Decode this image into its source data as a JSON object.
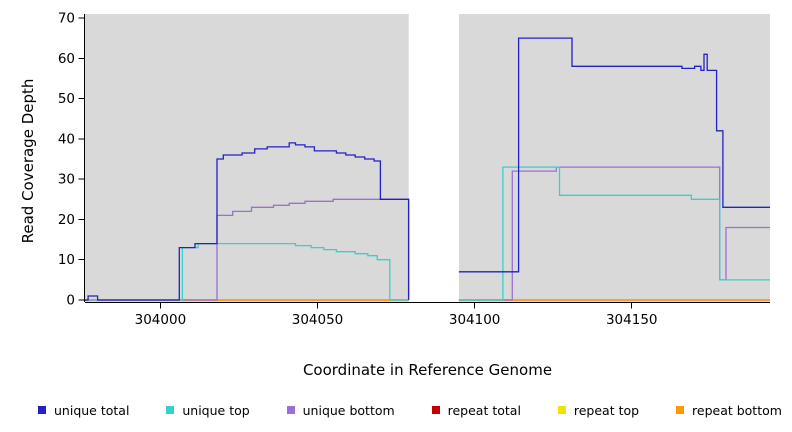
{
  "chart_data": {
    "type": "line",
    "title": "",
    "xlabel": "Coordinate in Reference Genome",
    "ylabel": "Read Coverage Depth",
    "xlim": [
      303976,
      304194
    ],
    "ylim": [
      0,
      70
    ],
    "x_ticks": [
      304000,
      304050,
      304100,
      304150
    ],
    "y_ticks": [
      0,
      10,
      20,
      30,
      40,
      50,
      60,
      70
    ],
    "plot_background": "#d9d9d9",
    "gap_regions": [
      [
        304079,
        304095
      ]
    ],
    "legend": [
      {
        "label": "unique total",
        "color": "#2222c2"
      },
      {
        "label": "unique top",
        "color": "#38cfcf"
      },
      {
        "label": "unique bottom",
        "color": "#9a70d8"
      },
      {
        "label": "repeat total",
        "color": "#c40000"
      },
      {
        "label": "repeat top",
        "color": "#f0e400"
      },
      {
        "label": "repeat bottom",
        "color": "#ff9a00"
      }
    ],
    "series": [
      {
        "name": "repeat total",
        "color": "#c40000",
        "segments": [
          [
            [
              303976,
              0
            ],
            [
              304079,
              0
            ]
          ],
          [
            [
              304095,
              0
            ],
            [
              304194,
              0
            ]
          ]
        ]
      },
      {
        "name": "repeat top",
        "color": "#f0e400",
        "segments": [
          [
            [
              303976,
              0
            ],
            [
              304079,
              0
            ]
          ],
          [
            [
              304095,
              0
            ],
            [
              304194,
              0
            ]
          ]
        ]
      },
      {
        "name": "repeat bottom",
        "color": "#ff9a00",
        "segments": [
          [
            [
              303976,
              0
            ],
            [
              304079,
              0
            ]
          ],
          [
            [
              304095,
              0
            ],
            [
              304194,
              0
            ]
          ]
        ]
      },
      {
        "name": "unique bottom",
        "color": "#9a70d8",
        "segments": [
          [
            [
              303976,
              0
            ],
            [
              304018,
              21
            ],
            [
              304023,
              22
            ],
            [
              304029,
              23
            ],
            [
              304036,
              23.5
            ],
            [
              304041,
              24
            ],
            [
              304046,
              24.5
            ],
            [
              304055,
              25
            ],
            [
              304070,
              25
            ],
            [
              304079,
              0
            ]
          ],
          [
            [
              304095,
              0
            ],
            [
              304112,
              32
            ],
            [
              304126,
              33
            ],
            [
              304177,
              33
            ],
            [
              304178,
              5
            ],
            [
              304180,
              18
            ],
            [
              304194,
              18
            ]
          ]
        ]
      },
      {
        "name": "unique top",
        "color": "#38cfcf",
        "segments": [
          [
            [
              303976,
              0
            ],
            [
              304007,
              13
            ],
            [
              304012,
              14
            ],
            [
              304043,
              13.5
            ],
            [
              304048,
              13
            ],
            [
              304052,
              12.5
            ],
            [
              304056,
              12
            ],
            [
              304062,
              11.5
            ],
            [
              304066,
              11
            ],
            [
              304069,
              10
            ],
            [
              304073,
              0
            ],
            [
              304079,
              0
            ]
          ],
          [
            [
              304095,
              0
            ],
            [
              304109,
              33
            ],
            [
              304127,
              26
            ],
            [
              304169,
              25
            ],
            [
              304178,
              5
            ],
            [
              304194,
              5
            ]
          ]
        ]
      },
      {
        "name": "unique total",
        "color": "#2222c2",
        "segments": [
          [
            [
              303976,
              0
            ],
            [
              303977,
              1
            ],
            [
              303980,
              0
            ],
            [
              304006,
              13
            ],
            [
              304011,
              14
            ],
            [
              304018,
              35
            ],
            [
              304020,
              36
            ],
            [
              304026,
              36.5
            ],
            [
              304030,
              37.5
            ],
            [
              304034,
              38
            ],
            [
              304041,
              39
            ],
            [
              304043,
              38.5
            ],
            [
              304046,
              38
            ],
            [
              304049,
              37
            ],
            [
              304056,
              36.5
            ],
            [
              304059,
              36
            ],
            [
              304062,
              35.5
            ],
            [
              304065,
              35
            ],
            [
              304068,
              34.5
            ],
            [
              304070,
              25
            ],
            [
              304079,
              0
            ]
          ],
          [
            [
              304095,
              7
            ],
            [
              304114,
              65
            ],
            [
              304131,
              58
            ],
            [
              304166,
              57.5
            ],
            [
              304170,
              58
            ],
            [
              304172,
              57
            ],
            [
              304173,
              61
            ],
            [
              304174,
              57
            ],
            [
              304177,
              42
            ],
            [
              304179,
              23
            ],
            [
              304194,
              23
            ]
          ]
        ]
      }
    ]
  }
}
